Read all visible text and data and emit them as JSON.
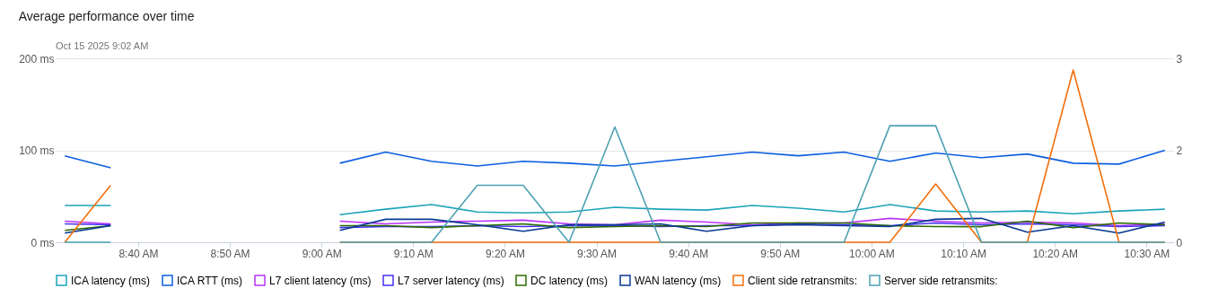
{
  "chart_data": {
    "type": "line",
    "title": "Average performance over time",
    "x": [
      "2025-10-15T08:32",
      "2025-10-15T08:37",
      "2025-10-15T08:42",
      "2025-10-15T08:47",
      "2025-10-15T08:52",
      "2025-10-15T08:57",
      "2025-10-15T09:02",
      "2025-10-15T09:07",
      "2025-10-15T09:12",
      "2025-10-15T09:17",
      "2025-10-15T09:22",
      "2025-10-15T09:27",
      "2025-10-15T09:32",
      "2025-10-15T09:37",
      "2025-10-15T09:42",
      "2025-10-15T09:47",
      "2025-10-15T09:52",
      "2025-10-15T09:57",
      "2025-10-15T10:02",
      "2025-10-15T10:07",
      "2025-10-15T10:12",
      "2025-10-15T10:17",
      "2025-10-15T10:22",
      "2025-10-15T10:27",
      "2025-10-15T10:32"
    ],
    "series": [
      {
        "name": "ICA latency (ms)",
        "color": "#1ca4b8",
        "values": [
          40,
          40,
          null,
          null,
          null,
          null,
          30,
          36,
          41,
          33,
          32,
          33,
          38,
          36,
          35,
          40,
          37,
          33,
          41,
          34,
          33,
          34,
          31,
          34,
          36
        ]
      },
      {
        "name": "ICA RTT (ms)",
        "color": "#0b5ee0",
        "values": [
          94,
          81,
          null,
          null,
          null,
          null,
          86,
          98,
          88,
          83,
          88,
          86,
          83,
          88,
          93,
          98,
          94,
          98,
          88,
          97,
          92,
          96,
          86,
          85,
          100
        ]
      },
      {
        "name": "L7 client latency (ms)",
        "color": "#b733f6",
        "values": [
          23,
          20,
          null,
          null,
          null,
          null,
          23,
          20,
          22,
          23,
          24,
          20,
          19,
          24,
          22,
          19,
          21,
          21,
          26,
          23,
          21,
          22,
          21,
          18,
          20
        ]
      },
      {
        "name": "L7 server latency (ms)",
        "color": "#4430f0",
        "values": [
          20,
          19,
          null,
          null,
          null,
          null,
          16,
          17,
          17,
          18,
          17,
          18,
          18,
          17,
          18,
          18,
          20,
          19,
          18,
          21,
          19,
          20,
          19,
          17,
          18
        ]
      },
      {
        "name": "DC latency (ms)",
        "color": "#2b6b00",
        "values": [
          13,
          18,
          null,
          null,
          null,
          null,
          18,
          18,
          16,
          18,
          20,
          16,
          17,
          18,
          17,
          21,
          21,
          21,
          18,
          17,
          17,
          23,
          16,
          21,
          19
        ]
      },
      {
        "name": "WAN latency (ms)",
        "color": "#0a3a94",
        "values": [
          10,
          18,
          null,
          null,
          null,
          null,
          13,
          25,
          25,
          19,
          12,
          19,
          19,
          20,
          12,
          18,
          19,
          18,
          17,
          25,
          26,
          11,
          18,
          10,
          22
        ]
      },
      {
        "name": "Client side retransmits:",
        "color": "#f56e0a",
        "axis": "y2",
        "values": [
          0,
          0.93,
          null,
          null,
          null,
          null,
          0,
          0,
          0,
          0,
          0,
          0,
          0,
          0,
          0,
          0,
          0,
          0,
          0,
          0.95,
          0,
          0,
          2.81,
          0,
          0
        ]
      },
      {
        "name": "Server side retransmits:",
        "color": "#4ea1b2",
        "axis": "y2",
        "values": [
          0,
          0,
          null,
          null,
          null,
          null,
          0,
          0,
          0,
          0.93,
          0.93,
          0,
          1.88,
          0,
          0,
          0,
          0,
          0,
          1.9,
          1.9,
          0,
          0,
          0,
          0,
          0
        ]
      }
    ],
    "xlim": [
      "2025-10-15T08:31",
      "2025-10-15T10:33"
    ],
    "xticks": [
      {
        "value": "2025-10-15T08:40",
        "label": "8:40 AM"
      },
      {
        "value": "2025-10-15T08:50",
        "label": "8:50 AM"
      },
      {
        "value": "2025-10-15T09:00",
        "label": "9:00 AM"
      },
      {
        "value": "2025-10-15T09:10",
        "label": "9:10 AM"
      },
      {
        "value": "2025-10-15T09:20",
        "label": "9:20 AM"
      },
      {
        "value": "2025-10-15T09:30",
        "label": "9:30 AM"
      },
      {
        "value": "2025-10-15T09:40",
        "label": "9:40 AM"
      },
      {
        "value": "2025-10-15T09:50",
        "label": "9:50 AM"
      },
      {
        "value": "2025-10-15T10:00",
        "label": "10:00 AM"
      },
      {
        "value": "2025-10-15T10:10",
        "label": "10:10 AM"
      },
      {
        "value": "2025-10-15T10:20",
        "label": "10:20 AM"
      },
      {
        "value": "2025-10-15T10:30",
        "label": "10:30 AM"
      }
    ],
    "ylim": [
      0,
      200
    ],
    "yticks": [
      {
        "value": 0,
        "label": "0 ms"
      },
      {
        "value": 100,
        "label": "100 ms"
      },
      {
        "value": 200,
        "label": "200 ms"
      }
    ],
    "y2lim": [
      0,
      3
    ],
    "y2ticks": [
      {
        "value": 0,
        "label": "0"
      },
      {
        "value": 1.5,
        "label": "2"
      },
      {
        "value": 3,
        "label": "3"
      }
    ],
    "grid": "y",
    "legend": "bottom",
    "marker": "none",
    "line_style": "solid",
    "annotations": [
      "Oct 15 2025 9:02 AM"
    ]
  }
}
